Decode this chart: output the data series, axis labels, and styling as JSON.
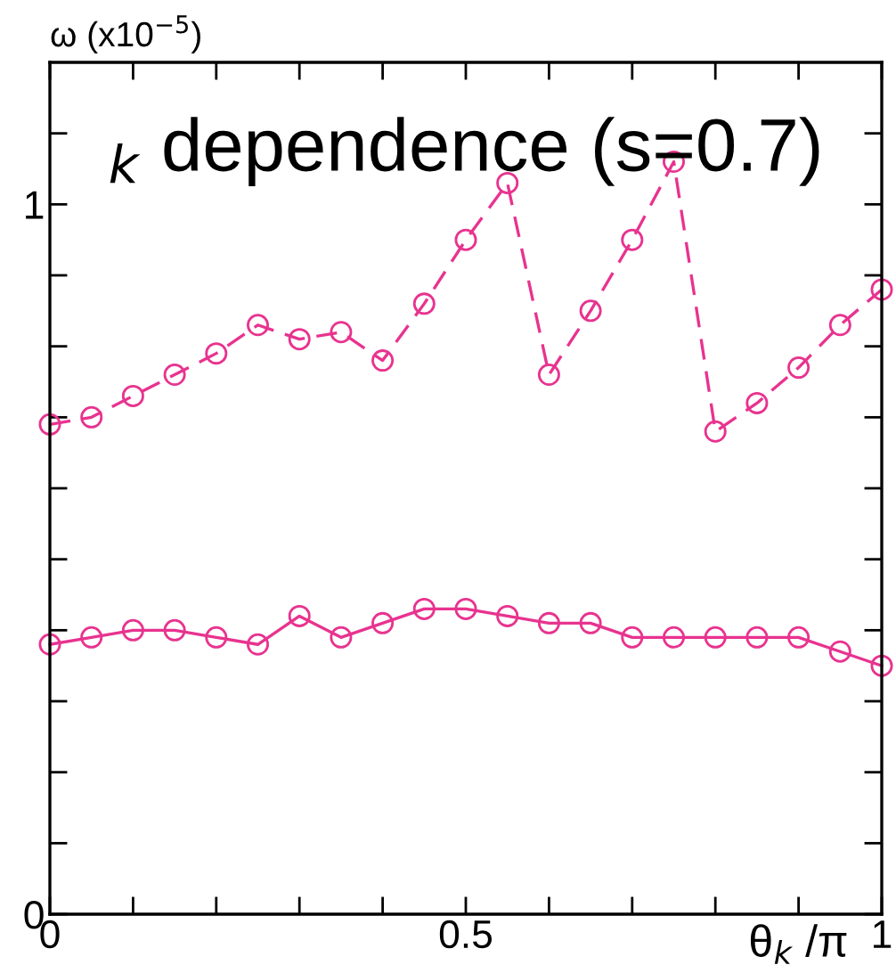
{
  "chart_data": {
    "type": "line",
    "title": "$_{k}$ dependence (s=0.7)",
    "ylabel": "ω (x10$^{−5}$)",
    "xlabel": "θ$_{k}$ /π",
    "x": [
      0,
      0.05,
      0.1,
      0.15,
      0.2,
      0.25,
      0.3,
      0.35,
      0.4,
      0.45,
      0.5,
      0.55,
      0.6,
      0.65,
      0.7,
      0.75,
      0.8,
      0.85,
      0.9,
      0.95,
      1.0
    ],
    "series": [
      {
        "color": "#e8338f",
        "line_style": "dashed",
        "marker": "circle",
        "values": [
          0.69,
          0.7,
          0.73,
          0.76,
          0.79,
          0.83,
          0.81,
          0.82,
          0.78,
          0.86,
          0.95,
          1.03,
          0.76,
          0.85,
          0.95,
          1.06,
          0.68,
          0.72,
          0.77,
          0.83,
          0.88
        ]
      },
      {
        "color": "#e8338f",
        "line_style": "solid",
        "marker": "circle",
        "values": [
          0.38,
          0.39,
          0.4,
          0.4,
          0.39,
          0.38,
          0.42,
          0.39,
          0.41,
          0.43,
          0.43,
          0.42,
          0.41,
          0.41,
          0.39,
          0.39,
          0.39,
          0.39,
          0.39,
          0.37,
          0.35
        ]
      }
    ],
    "xlim": [
      0,
      1
    ],
    "ylim": [
      0,
      1.2
    ],
    "xticks": [
      0,
      {
        "value": 0.1,
        "label": null
      },
      {
        "value": 0.2,
        "label": null
      },
      {
        "value": 0.3,
        "label": null
      },
      {
        "value": 0.4,
        "label": null
      },
      0.5,
      {
        "value": 0.6,
        "label": null
      },
      {
        "value": 0.7,
        "label": null
      },
      {
        "value": 0.8,
        "label": null
      },
      {
        "value": 0.9,
        "label": null
      },
      1
    ],
    "yticks": [
      0,
      {
        "value": 0.1,
        "label": null
      },
      {
        "value": 0.2,
        "label": null
      },
      {
        "value": 0.3,
        "label": null
      },
      {
        "value": 0.4,
        "label": null
      },
      {
        "value": 0.5,
        "label": null
      },
      {
        "value": 0.6,
        "label": null
      },
      {
        "value": 0.7,
        "label": null
      },
      {
        "value": 0.8,
        "label": null
      },
      {
        "value": 0.9,
        "label": null
      },
      1,
      {
        "value": 1.1,
        "label": null
      }
    ],
    "grid": false,
    "legend": false
  }
}
